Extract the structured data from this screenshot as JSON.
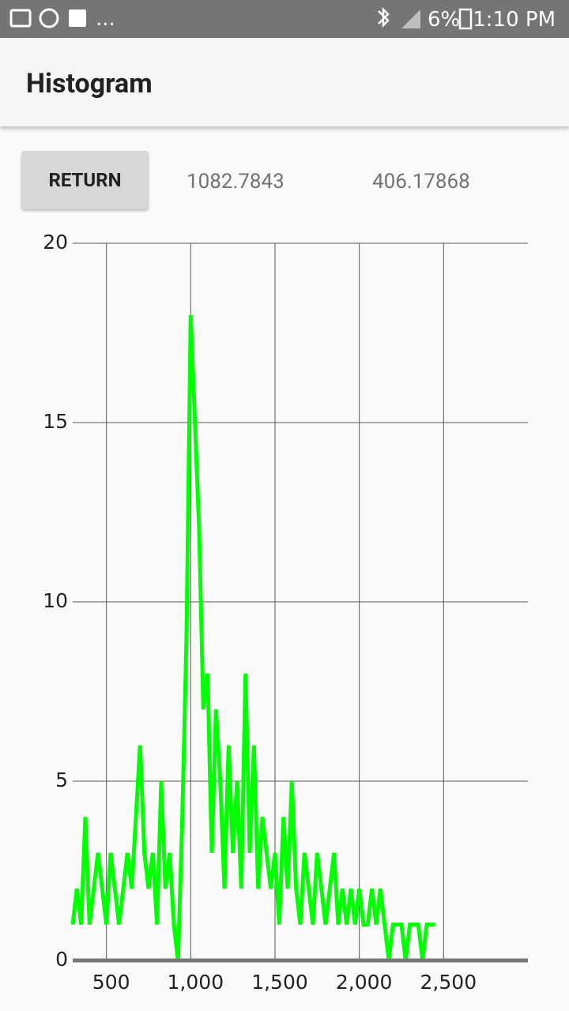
{
  "status": {
    "more": "...",
    "battery": "6%",
    "time": "1:10 PM"
  },
  "app_bar": {
    "title": "Histogram"
  },
  "controls": {
    "button": "RETURN",
    "mean": "1082.7843",
    "stddev": "406.17868"
  },
  "chart_data": {
    "type": "line",
    "x": [
      300,
      325,
      350,
      375,
      400,
      425,
      450,
      475,
      500,
      525,
      550,
      575,
      600,
      625,
      650,
      675,
      700,
      725,
      750,
      775,
      800,
      825,
      850,
      875,
      900,
      925,
      950,
      975,
      1000,
      1025,
      1050,
      1075,
      1100,
      1125,
      1150,
      1175,
      1200,
      1225,
      1250,
      1275,
      1300,
      1325,
      1350,
      1375,
      1400,
      1425,
      1450,
      1475,
      1500,
      1525,
      1550,
      1575,
      1600,
      1625,
      1650,
      1675,
      1700,
      1725,
      1750,
      1775,
      1800,
      1825,
      1850,
      1875,
      1900,
      1925,
      1950,
      1975,
      2000,
      2025,
      2050,
      2075,
      2100,
      2125,
      2150,
      2175,
      2200,
      2225,
      2250,
      2275,
      2300,
      2325,
      2350,
      2375,
      2400,
      2425,
      2450
    ],
    "series": [
      {
        "color": "#00ff00",
        "values": [
          1,
          2,
          1,
          4,
          1,
          2,
          3,
          2,
          1,
          3,
          2,
          1,
          2,
          3,
          2,
          4,
          6,
          3,
          2,
          3,
          1,
          5,
          2,
          3,
          1,
          0,
          4,
          9,
          18,
          15,
          12,
          7,
          8,
          3,
          7,
          5,
          2,
          6,
          3,
          5,
          2,
          8,
          3,
          6,
          2,
          4,
          3,
          2,
          3,
          1,
          4,
          2,
          5,
          2,
          1,
          3,
          2,
          1,
          3,
          2,
          1,
          2,
          3,
          1,
          2,
          1,
          2,
          1,
          2,
          1,
          1,
          2,
          1,
          2,
          1,
          0,
          1,
          1,
          1,
          0,
          1,
          1,
          1,
          0,
          1,
          1,
          1
        ]
      }
    ],
    "xlim": [
      300,
      3000
    ],
    "xticks": [
      500,
      {
        "value": 1000,
        "label": "1,000"
      },
      {
        "value": 1500,
        "label": "1,500"
      },
      {
        "value": 2000,
        "label": "2,000"
      },
      {
        "value": 2500,
        "label": "2,500"
      }
    ],
    "ylim": [
      0,
      20
    ],
    "yticks": [
      0,
      5,
      10,
      15,
      20
    ],
    "grid": true
  }
}
